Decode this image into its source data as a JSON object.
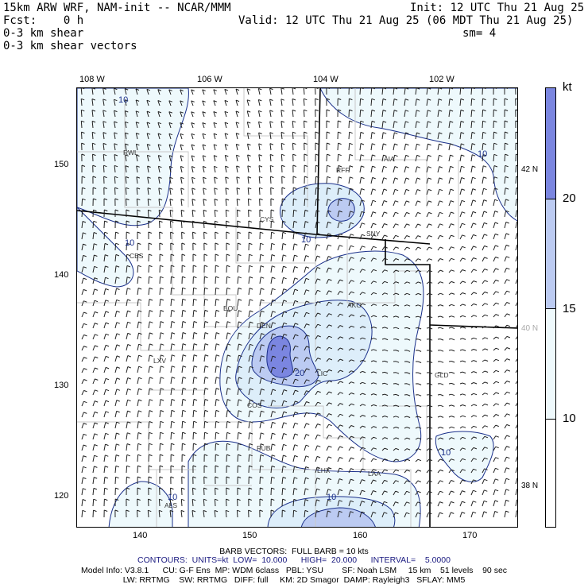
{
  "header": {
    "title_left": "15km ARW WRF, NAM-init -- NCAR/MMM",
    "init": "Init: 12 UTC Thu 21 Aug 25",
    "fcst": "Fcst:    0 h",
    "valid": "Valid: 12 UTC Thu 21 Aug 25 (06 MDT Thu 21 Aug 25)",
    "field1": "0-3 km shear",
    "field2": "0-3 km shear vectors",
    "smoothing": "sm= 4"
  },
  "axes": {
    "top_ticks": [
      "108 W",
      "106 W",
      "104 W",
      "102 W"
    ],
    "left_ticks": [
      "150",
      "140",
      "130",
      "120"
    ],
    "bottom_ticks": [
      "140",
      "150",
      "160",
      "170"
    ],
    "right_lat_ticks": [
      "42 N",
      "40 N",
      "38 N"
    ]
  },
  "stations": [
    "RWL",
    "RFF",
    "AIA",
    "CYS",
    "SNY",
    "CBS",
    "BOU",
    "AKO",
    "DEN",
    "LIC",
    "LXV",
    "COS",
    "GLD",
    "PUB",
    "LHX",
    "LAA",
    "ALS"
  ],
  "contour_labels": [
    "10",
    "10",
    "10",
    "10",
    "20",
    "10",
    "10",
    "10"
  ],
  "colorbar": {
    "unit": "kt",
    "labels": [
      "20",
      "15",
      "10"
    ],
    "colors": [
      "#7b86e0",
      "#bccbf2",
      "#ddeefa",
      "#eef9fc",
      "#ffffff"
    ]
  },
  "footer": {
    "barb": "BARB VECTORS:  FULL BARB = 10 kts",
    "contours": "CONTOURS:  UNITS=kt  LOW=  10.000      HIGH=  20.000      INTERVAL=    5.0000",
    "model1": "Model Info: V3.8.1      CU: G-F Ens  MP: WDM 6class   PBL: YSU        SF: Noah LSM     15 km    51 levels    90 sec",
    "model2": "LW: RRTMG    SW: RRTMG   DIFF: full     KM: 2D Smagor  DAMP: Rayleigh3   SFLAY: MM5"
  },
  "colors": {
    "level10": "#eef9fc",
    "level15": "#ddeefa",
    "level20": "#bccbf2",
    "level25": "#7b86e0",
    "contour": "#1a2f8a",
    "county": "#c8c8c8",
    "state": "#000000"
  }
}
